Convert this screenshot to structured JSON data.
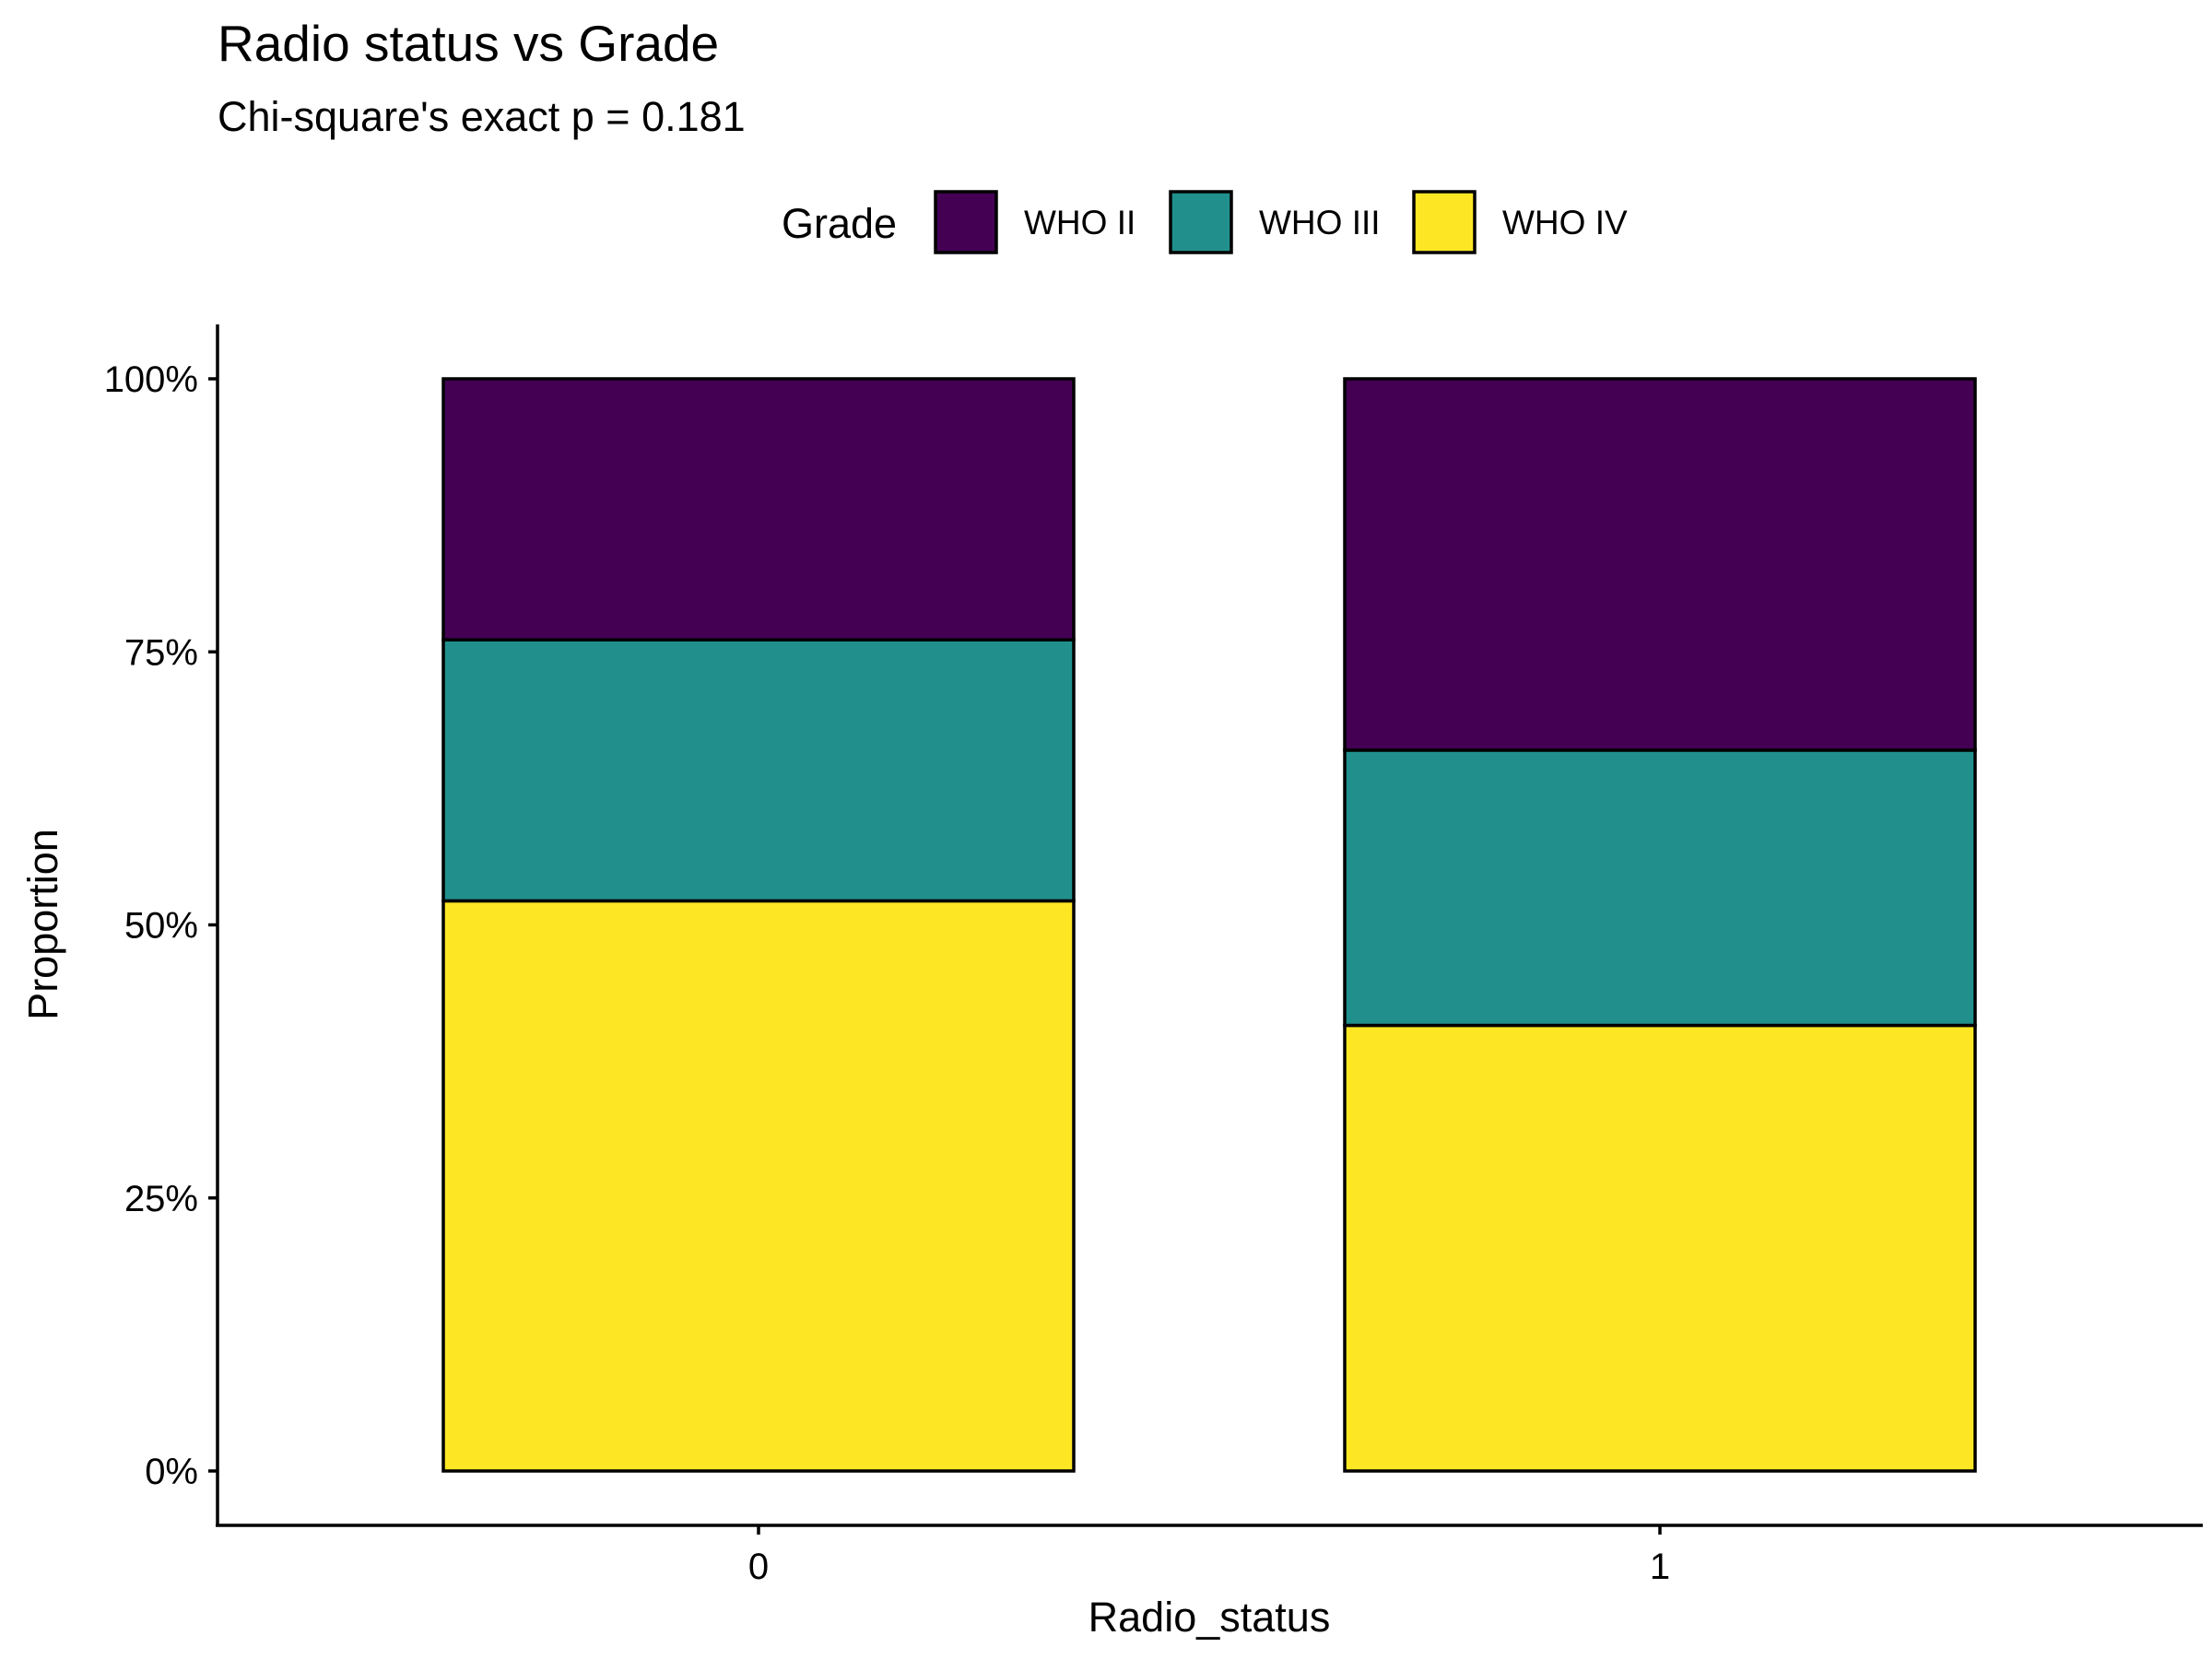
{
  "chart_data": {
    "type": "bar",
    "stacked": true,
    "title": "Radio status vs Grade",
    "subtitle": "Chi-square's exact p = 0.181",
    "xlabel": "Radio_status",
    "ylabel": "Proportion",
    "categories": [
      "0",
      "1"
    ],
    "ylim": [
      0,
      1
    ],
    "yticks": [
      0,
      0.25,
      0.5,
      0.75,
      1
    ],
    "ytick_labels": [
      "0%",
      "25%",
      "50%",
      "75%",
      "100%"
    ],
    "grid": false,
    "legend": {
      "title": "Grade",
      "position": "top"
    },
    "series": [
      {
        "name": "WHO II",
        "color": "#440154",
        "values": [
          0.239,
          0.34
        ]
      },
      {
        "name": "WHO III",
        "color": "#21908C",
        "values": [
          0.239,
          0.252
        ]
      },
      {
        "name": "WHO IV",
        "color": "#FDE725",
        "values": [
          0.522,
          0.408
        ]
      }
    ],
    "stack_order": [
      "WHO IV",
      "WHO III",
      "WHO II"
    ]
  }
}
